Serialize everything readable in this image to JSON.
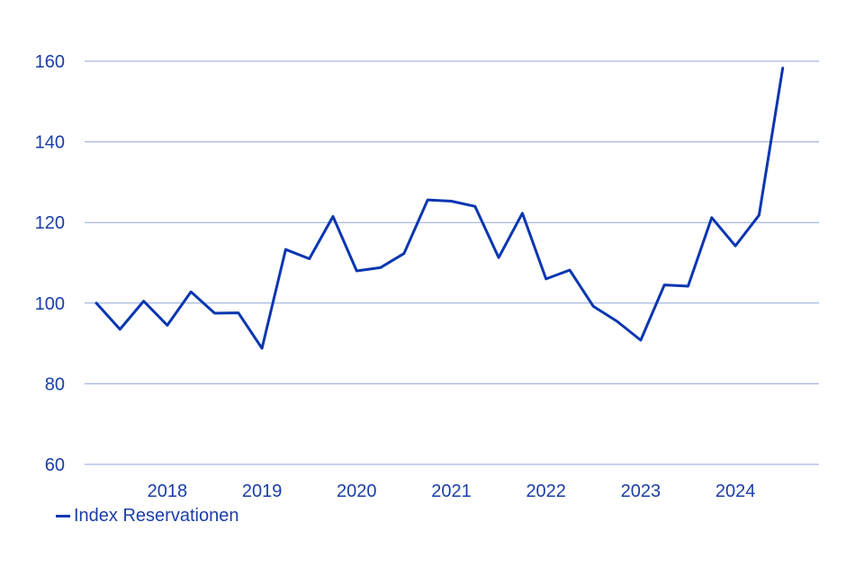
{
  "chart_data": {
    "type": "line",
    "title": "",
    "xlabel": "",
    "ylabel": "",
    "ylim": [
      60,
      160
    ],
    "yticks": [
      60,
      80,
      100,
      120,
      140,
      160
    ],
    "xticks": [
      "2018",
      "2019",
      "2020",
      "2021",
      "2022",
      "2023",
      "2024"
    ],
    "grid": "horizontal",
    "legend_position": "bottom-left",
    "colors": {
      "line": "#0a36b0",
      "grid": "#8fa6d8",
      "text": "#1a3ea8"
    },
    "series": [
      {
        "name": "Index Reservationen",
        "x": [
          "2017-Q2",
          "2017-Q3",
          "2017-Q4",
          "2018-Q1",
          "2018-Q2",
          "2018-Q3",
          "2018-Q4",
          "2019-Q1",
          "2019-Q2",
          "2019-Q3",
          "2019-Q4",
          "2020-Q1",
          "2020-Q2",
          "2020-Q3",
          "2020-Q4",
          "2021-Q1",
          "2021-Q2",
          "2021-Q3",
          "2021-Q4",
          "2022-Q1",
          "2022-Q2",
          "2022-Q3",
          "2022-Q4",
          "2023-Q1",
          "2023-Q2",
          "2023-Q3",
          "2023-Q4",
          "2024-Q1",
          "2024-Q2",
          "2024-Q3"
        ],
        "values": [
          100,
          93.5,
          100.5,
          94.5,
          102.8,
          97.5,
          97.6,
          88.8,
          113.3,
          111,
          121.5,
          108,
          108.8,
          112.3,
          125.6,
          125.3,
          124,
          111.3,
          122.3,
          106,
          108.2,
          99.2,
          95.5,
          90.8,
          104.5,
          104.2,
          121.2,
          114.2,
          121.8,
          158.3
        ]
      }
    ]
  }
}
